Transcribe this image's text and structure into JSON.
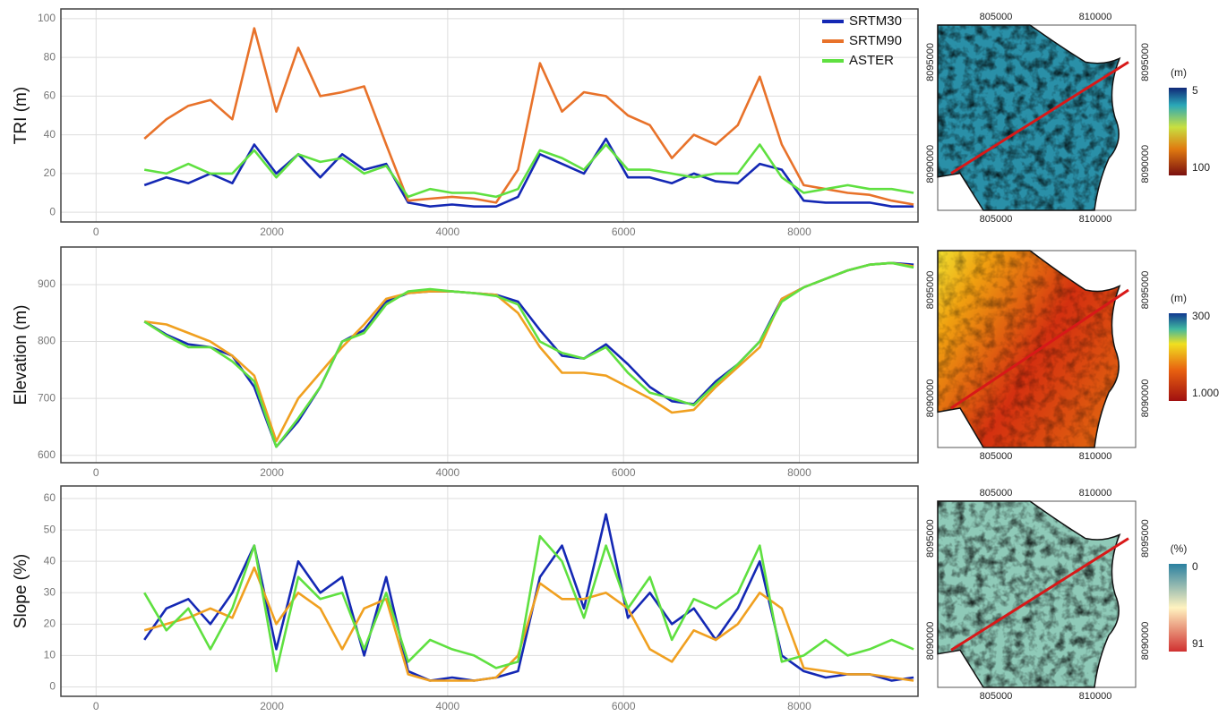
{
  "chart_data": [
    {
      "type": "line",
      "ylabel": "TRI (m)",
      "x": [
        550,
        800,
        1050,
        1300,
        1550,
        1800,
        2050,
        2300,
        2550,
        2800,
        3050,
        3300,
        3550,
        3800,
        4050,
        4300,
        4550,
        4800,
        5050,
        5300,
        5550,
        5800,
        6050,
        6300,
        6550,
        6800,
        7050,
        7300,
        7550,
        7800,
        8050,
        8300,
        8550,
        8800,
        9050,
        9300
      ],
      "xlim": [
        -400,
        9350
      ],
      "xticks": [
        0,
        2000,
        4000,
        6000,
        8000
      ],
      "ylim": [
        -5,
        105
      ],
      "yticks": [
        0,
        20,
        40,
        60,
        80,
        100
      ],
      "grid": true,
      "legend": "upper right",
      "series": [
        {
          "name": "SRTM30",
          "color": "#1428b4",
          "values": [
            14,
            18,
            15,
            20,
            15,
            35,
            20,
            30,
            18,
            30,
            22,
            25,
            5,
            3,
            4,
            3,
            3,
            8,
            30,
            25,
            20,
            38,
            18,
            18,
            15,
            20,
            16,
            15,
            25,
            22,
            6,
            5,
            5,
            5,
            3,
            3
          ]
        },
        {
          "name": "SRTM90",
          "color": "#e8722a",
          "values": [
            38,
            48,
            55,
            58,
            48,
            95,
            52,
            85,
            60,
            62,
            65,
            35,
            6,
            7,
            8,
            7,
            5,
            22,
            77,
            52,
            62,
            60,
            50,
            45,
            28,
            40,
            35,
            45,
            70,
            35,
            14,
            12,
            10,
            9,
            6,
            4
          ]
        },
        {
          "name": "ASTER",
          "color": "#5fe040",
          "values": [
            22,
            20,
            25,
            20,
            20,
            32,
            18,
            30,
            26,
            28,
            20,
            24,
            8,
            12,
            10,
            10,
            8,
            12,
            32,
            28,
            22,
            35,
            22,
            22,
            20,
            18,
            20,
            20,
            35,
            18,
            10,
            12,
            14,
            12,
            12,
            10
          ]
        }
      ]
    },
    {
      "type": "line",
      "ylabel": "Elevation (m)",
      "x": [
        550,
        800,
        1050,
        1300,
        1550,
        1800,
        2050,
        2300,
        2550,
        2800,
        3050,
        3300,
        3550,
        3800,
        4050,
        4300,
        4550,
        4800,
        5050,
        5300,
        5550,
        5800,
        6050,
        6300,
        6550,
        6800,
        7050,
        7300,
        7550,
        7800,
        8050,
        8300,
        8550,
        8800,
        9050,
        9300
      ],
      "xlim": [
        -400,
        9350
      ],
      "xticks": [
        0,
        2000,
        4000,
        6000,
        8000
      ],
      "ylim": [
        587,
        966
      ],
      "yticks": [
        600,
        700,
        800,
        900
      ],
      "grid": true,
      "series": [
        {
          "color": "#1428b4",
          "values": [
            835,
            812,
            795,
            790,
            775,
            720,
            615,
            660,
            720,
            800,
            820,
            870,
            885,
            888,
            888,
            885,
            882,
            870,
            820,
            775,
            770,
            795,
            760,
            720,
            695,
            690,
            730,
            760,
            800,
            875,
            895,
            910,
            925,
            935,
            938,
            935
          ]
        },
        {
          "color": "#f0a020",
          "values": [
            835,
            830,
            815,
            800,
            775,
            740,
            625,
            700,
            745,
            790,
            830,
            875,
            885,
            888,
            888,
            885,
            882,
            850,
            790,
            745,
            745,
            740,
            720,
            700,
            675,
            680,
            720,
            755,
            790,
            875,
            895,
            910,
            925,
            935,
            938,
            932
          ]
        },
        {
          "color": "#5fe040",
          "values": [
            835,
            810,
            790,
            790,
            765,
            730,
            615,
            665,
            720,
            800,
            815,
            865,
            888,
            892,
            888,
            885,
            880,
            865,
            800,
            780,
            770,
            790,
            745,
            710,
            700,
            688,
            725,
            760,
            800,
            870,
            895,
            910,
            925,
            935,
            938,
            930
          ]
        }
      ]
    },
    {
      "type": "line",
      "ylabel": "Slope (%)",
      "x": [
        550,
        800,
        1050,
        1300,
        1550,
        1800,
        2050,
        2300,
        2550,
        2800,
        3050,
        3300,
        3550,
        3800,
        4050,
        4300,
        4550,
        4800,
        5050,
        5300,
        5550,
        5800,
        6050,
        6300,
        6550,
        6800,
        7050,
        7300,
        7550,
        7800,
        8050,
        8300,
        8550,
        8800,
        9050,
        9300
      ],
      "xlim": [
        -400,
        9350
      ],
      "xticks": [
        0,
        2000,
        4000,
        6000,
        8000
      ],
      "ylim": [
        -3,
        64
      ],
      "yticks": [
        0,
        10,
        20,
        30,
        40,
        50,
        60
      ],
      "grid": true,
      "series": [
        {
          "color": "#1428b4",
          "values": [
            15,
            25,
            28,
            20,
            30,
            45,
            12,
            40,
            30,
            35,
            10,
            35,
            5,
            2,
            3,
            2,
            3,
            5,
            35,
            45,
            25,
            55,
            22,
            30,
            20,
            25,
            15,
            25,
            40,
            10,
            5,
            3,
            4,
            4,
            2,
            3
          ]
        },
        {
          "color": "#f0a020",
          "values": [
            18,
            20,
            22,
            25,
            22,
            38,
            20,
            30,
            25,
            12,
            25,
            28,
            4,
            2,
            2,
            2,
            3,
            10,
            33,
            28,
            28,
            30,
            25,
            12,
            8,
            18,
            15,
            20,
            30,
            25,
            6,
            5,
            4,
            4,
            3,
            2
          ]
        },
        {
          "color": "#5fe040",
          "values": [
            30,
            18,
            25,
            12,
            25,
            45,
            5,
            35,
            28,
            30,
            12,
            30,
            8,
            15,
            12,
            10,
            6,
            8,
            48,
            40,
            22,
            45,
            25,
            35,
            15,
            28,
            25,
            30,
            45,
            8,
            10,
            15,
            10,
            12,
            15,
            12
          ]
        }
      ]
    }
  ],
  "maps": [
    {
      "x_ticks": [
        805000,
        810000
      ],
      "y_ticks": [
        8095000,
        8090000
      ],
      "colorbar_title": "(m)",
      "colorbar_ticks": [
        5,
        100
      ]
    },
    {
      "x_ticks": [
        805000,
        810000
      ],
      "y_ticks": [
        8095000,
        8090000
      ],
      "colorbar_title": "(m)",
      "colorbar_ticks": [
        300,
        {
          "value": 1000,
          "label": "1.000"
        }
      ]
    },
    {
      "x_ticks": [
        805000,
        810000
      ],
      "y_ticks": [
        8095000,
        8090000
      ],
      "colorbar_title": "(%)",
      "colorbar_ticks": [
        0,
        91
      ]
    }
  ]
}
